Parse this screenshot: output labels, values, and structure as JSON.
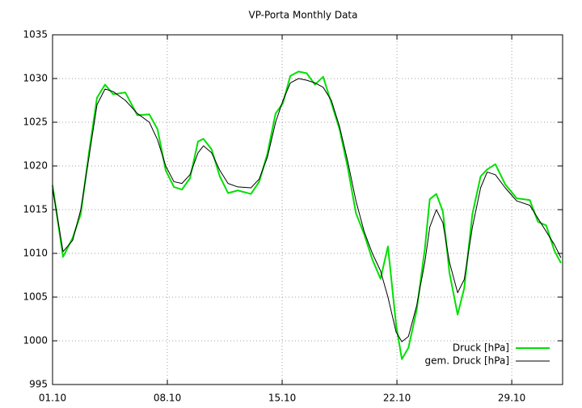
{
  "chart_data": {
    "type": "line",
    "title": "VP-Porta Monthly Data",
    "x": [
      1,
      1.64,
      2.23,
      2.72,
      3.22,
      3.71,
      4.2,
      4.7,
      5.44,
      6.17,
      6.9,
      7.4,
      7.9,
      8.4,
      8.89,
      9.38,
      9.87,
      10.2,
      10.7,
      11.2,
      11.7,
      12.3,
      13.1,
      13.6,
      14.1,
      14.6,
      15.05,
      15.5,
      16,
      16.5,
      17,
      17.5,
      18,
      18.5,
      19,
      19.5,
      20,
      20.5,
      21,
      21.45,
      21.95,
      22.3,
      22.7,
      23.2,
      23.7,
      24,
      24.4,
      24.8,
      25.2,
      25.7,
      26.1,
      26.6,
      27.1,
      27.5,
      28,
      28.6,
      29.3,
      30.1,
      30.6,
      31.1,
      31.6,
      32
    ],
    "series": [
      {
        "name": "Druck [hPa]",
        "color": "#00e000",
        "width": 2,
        "values": [
          1017.8,
          1009.6,
          1011.8,
          1014.5,
          1021.5,
          1027.8,
          1029.3,
          1028.2,
          1028.4,
          1025.8,
          1025.9,
          1024.2,
          1019.5,
          1017.6,
          1017.3,
          1018.6,
          1022.8,
          1023.1,
          1021.9,
          1018.8,
          1016.9,
          1017.2,
          1016.8,
          1018.2,
          1021.4,
          1026,
          1027.2,
          1030.3,
          1030.8,
          1030.6,
          1029.3,
          1030.2,
          1027.2,
          1024.2,
          1019.8,
          1014.6,
          1012.2,
          1009.3,
          1007.1,
          1010.8,
          1001.8,
          997.9,
          999.2,
          1003.5,
          1010.5,
          1016.2,
          1016.8,
          1014.8,
          1007.8,
          1003,
          1006,
          1014.5,
          1018.8,
          1019.6,
          1020.2,
          1017.9,
          1016.3,
          1016.1,
          1013.6,
          1013.2,
          1010.3,
          1008.9
        ]
      },
      {
        "name": "gem. Druck [hPa]",
        "color": "#000000",
        "width": 1,
        "values": [
          1017.5,
          1010.2,
          1011.5,
          1015,
          1021,
          1027,
          1028.8,
          1028.5,
          1027.5,
          1026,
          1025,
          1023,
          1020,
          1018.2,
          1018,
          1019,
          1021.5,
          1022.3,
          1021.5,
          1019.5,
          1018,
          1017.6,
          1017.5,
          1018.5,
          1021,
          1025,
          1027.5,
          1029.5,
          1030,
          1029.8,
          1029.5,
          1029,
          1027.5,
          1024.5,
          1020.5,
          1016,
          1012.5,
          1010,
          1008,
          1005,
          1001,
          999.9,
          1000.5,
          1004,
          1009,
          1013,
          1015,
          1013.5,
          1009,
          1005.5,
          1007,
          1013,
          1017.5,
          1019.3,
          1019,
          1017.5,
          1016,
          1015.5,
          1014,
          1012.5,
          1011,
          1009.5
        ]
      }
    ],
    "xlim": [
      1,
      32.1
    ],
    "xticks": [
      {
        "value": 1,
        "label": "01.10"
      },
      {
        "value": 8,
        "label": "08.10"
      },
      {
        "value": 15,
        "label": "15.10"
      },
      {
        "value": 22,
        "label": "22.10"
      },
      {
        "value": 29,
        "label": "29.10"
      }
    ],
    "ylim": [
      995,
      1035
    ],
    "yticks": [
      995,
      1000,
      1005,
      1010,
      1015,
      1020,
      1025,
      1030,
      1035
    ],
    "grid": true,
    "legend": "bottom-right"
  }
}
